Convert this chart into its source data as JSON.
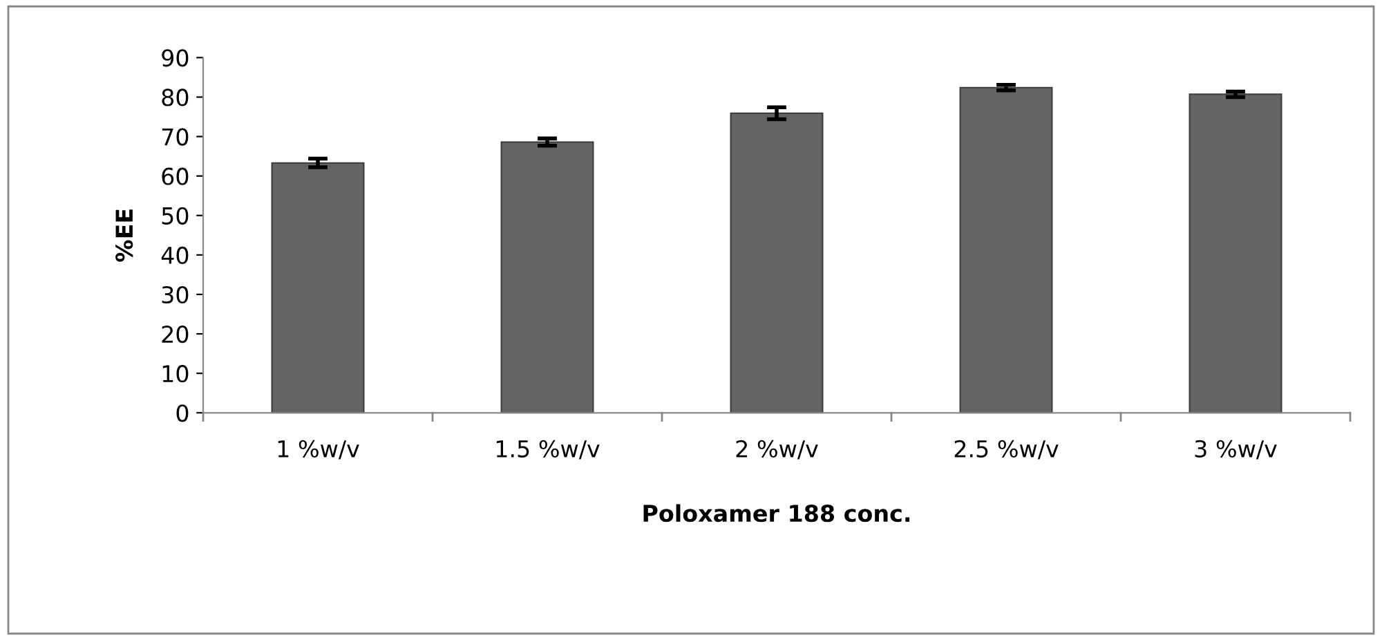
{
  "chart_data": {
    "type": "bar",
    "xlabel": "Poloxamer 188 conc.",
    "ylabel": "%EE",
    "categories": [
      "1 %w/v",
      "1.5 %w/v",
      "2 %w/v",
      "2.5 %w/v",
      "3 %w/v"
    ],
    "values": [
      63.3,
      68.6,
      75.9,
      82.4,
      80.7
    ],
    "errors": [
      1.1,
      0.9,
      1.5,
      0.7,
      0.7
    ],
    "color": "#646464",
    "ylim": [
      0,
      90
    ],
    "yticks": [
      0,
      10,
      20,
      30,
      40,
      50,
      60,
      70,
      80,
      90
    ],
    "grid": false,
    "legend": false
  }
}
